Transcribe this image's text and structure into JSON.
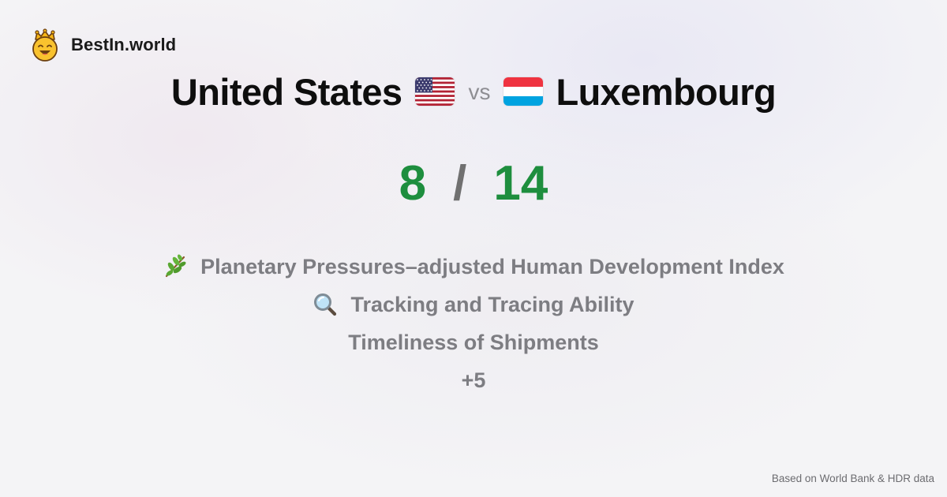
{
  "brand": {
    "name": "BestIn.world",
    "logo_icon": "crown-smiley-icon"
  },
  "comparison": {
    "left_country": "United States",
    "left_flag": "us-flag-icon",
    "vs_label": "vs",
    "right_country": "Luxembourg",
    "right_flag": "luxembourg-flag-icon"
  },
  "score": {
    "left": "8",
    "separator": "/",
    "right": "14",
    "color": "#1e8e3e"
  },
  "metrics": [
    {
      "label": "Planetary Pressures–adjusted Human Development Index",
      "icon": "herb-icon"
    },
    {
      "label": "Tracking and Tracing Ability",
      "icon": "magnifying-glass-icon"
    },
    {
      "label": "Timeliness of Shipments",
      "icon": ""
    }
  ],
  "more_label": "+5",
  "footer": {
    "source_note": "Based on World Bank & HDR data"
  }
}
